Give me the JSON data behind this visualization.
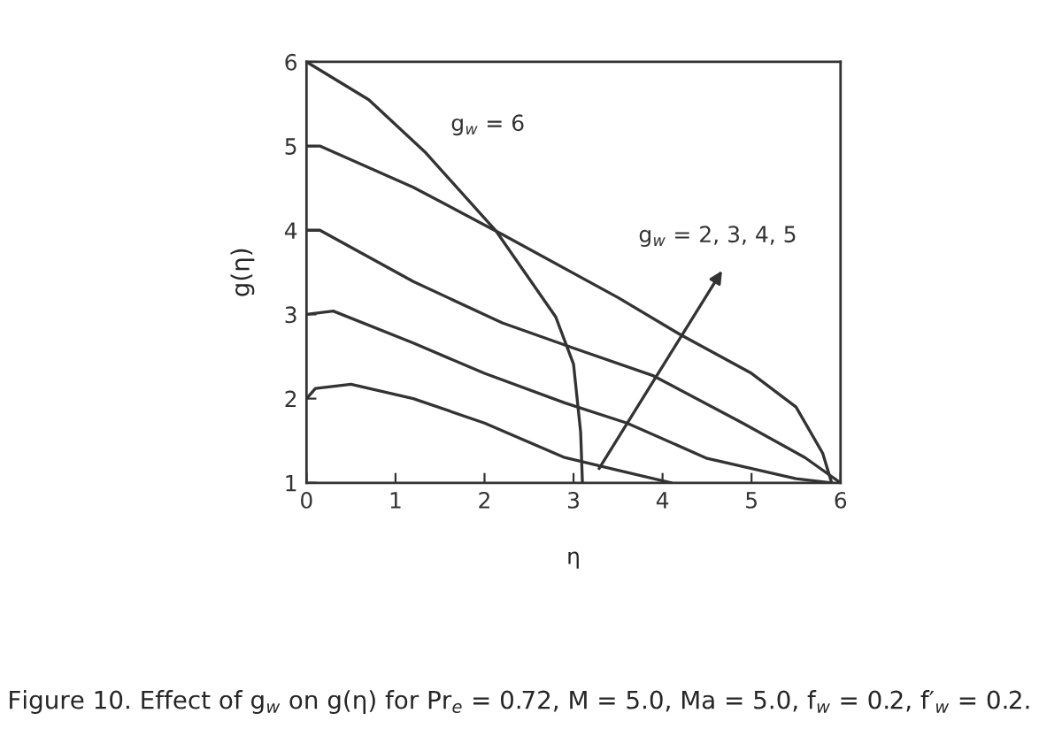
{
  "chart_data": {
    "type": "line",
    "xlabel": "η",
    "ylabel": "g(η)",
    "xlim": [
      0,
      6
    ],
    "ylim": [
      1,
      6
    ],
    "xticks": [
      0,
      1,
      2,
      3,
      4,
      5,
      6
    ],
    "yticks": [
      1,
      2,
      3,
      4,
      5,
      6
    ],
    "grid": false,
    "legend": false,
    "marker": "none",
    "line_style": "solid",
    "series": [
      {
        "color": "#333333",
        "x": [
          0,
          0.1,
          0.5,
          1.2,
          2,
          2.9,
          3.5,
          4.1
        ],
        "values": [
          2,
          2.12,
          2.17,
          2.0,
          1.71,
          1.3,
          1.15,
          1.0
        ]
      },
      {
        "color": "#333333",
        "x": [
          0,
          0.3,
          1.2,
          2,
          2.9,
          3.6,
          4.5,
          5.5,
          5.9
        ],
        "values": [
          3,
          3.04,
          2.66,
          2.3,
          1.95,
          1.71,
          1.29,
          1.05,
          1.0
        ]
      },
      {
        "color": "#333333",
        "x": [
          0,
          0.15,
          1.2,
          2.2,
          3,
          3.9,
          4.9,
          5.6,
          6
        ],
        "values": [
          4,
          4.0,
          3.39,
          2.9,
          2.6,
          2.27,
          1.71,
          1.3,
          1.0
        ]
      },
      {
        "color": "#333333",
        "x": [
          0,
          0.15,
          1.2,
          2.2,
          3.5,
          4.2,
          5,
          5.5,
          5.8,
          5.9
        ],
        "values": [
          5,
          5.0,
          4.51,
          3.95,
          3.2,
          2.76,
          2.3,
          1.9,
          1.35,
          1.0
        ]
      },
      {
        "color": "#333333",
        "x": [
          0,
          0.7,
          1.33,
          2.13,
          2.8,
          3.0,
          3.08,
          3.1
        ],
        "values": [
          6,
          5.55,
          4.93,
          3.99,
          2.97,
          2.41,
          1.6,
          1.0
        ]
      }
    ],
    "annotations": [
      "g$_{w}$ = 6",
      "g$_{w}$ = 2, 3, 4, 5",
      "Figure 10. Effect of g$_{w}$ on g(η) for Pr$_{e}$ = 0.72, M = 5.0, Ma = 5.0, f$_{w}$ = 0.2, f′$_{w}$ = 0.2."
    ]
  }
}
